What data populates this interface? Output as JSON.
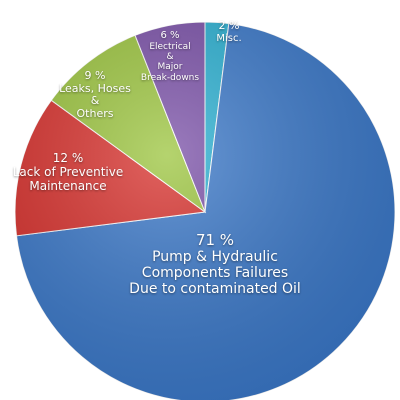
{
  "chart_data": {
    "type": "pie",
    "categories": [
      "Misc.",
      "Pump & Hydraulic Components Failures\nDue to contaminated Oil",
      "Lack of Preventive\nMaintenance",
      "Leaks, Hoses\n&\nOthers",
      "Electrical\n&\nMajor\nBreak-downs"
    ],
    "values": [
      2,
      71,
      12,
      9,
      6
    ],
    "value_labels": [
      "2 %",
      "71 %",
      "12 %",
      "9 %",
      "6 %"
    ],
    "colors": [
      "#2ab0d2",
      "#3a78c9",
      "#d8302c",
      "#9cc53e",
      "#7a50a8"
    ]
  }
}
